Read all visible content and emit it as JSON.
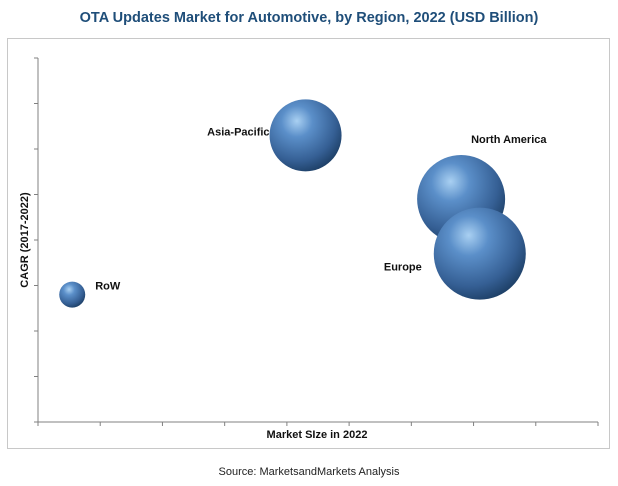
{
  "header": {
    "title": "OTA Updates Market for Automotive, by Region, 2022 (USD Billion)"
  },
  "footer": {
    "source": "Source: MarketsandMarkets Analysis"
  },
  "colors": {
    "title": "#1f4e79",
    "bubble_light": "#9ec6ec",
    "bubble_mid": "#4f81bd",
    "bubble_dark": "#1d3f66",
    "axis": "#808080"
  },
  "chart_data": {
    "type": "bubble",
    "title": "OTA Updates Market for Automotive, by Region, 2022 (USD Billion)",
    "xlabel": "Market SIze in 2022",
    "ylabel": "CAGR (2017-2022)",
    "xlim": [
      0,
      9
    ],
    "ylim": [
      0,
      8
    ],
    "grid": false,
    "legend": "none",
    "series": [
      {
        "name": "Asia-Pacific",
        "x": 4.3,
        "y": 6.3,
        "size": 36
      },
      {
        "name": "North America",
        "x": 6.8,
        "y": 4.9,
        "size": 44
      },
      {
        "name": "Europe",
        "x": 7.1,
        "y": 3.7,
        "size": 46
      },
      {
        "name": "RoW",
        "x": 0.55,
        "y": 2.8,
        "size": 13
      }
    ]
  }
}
